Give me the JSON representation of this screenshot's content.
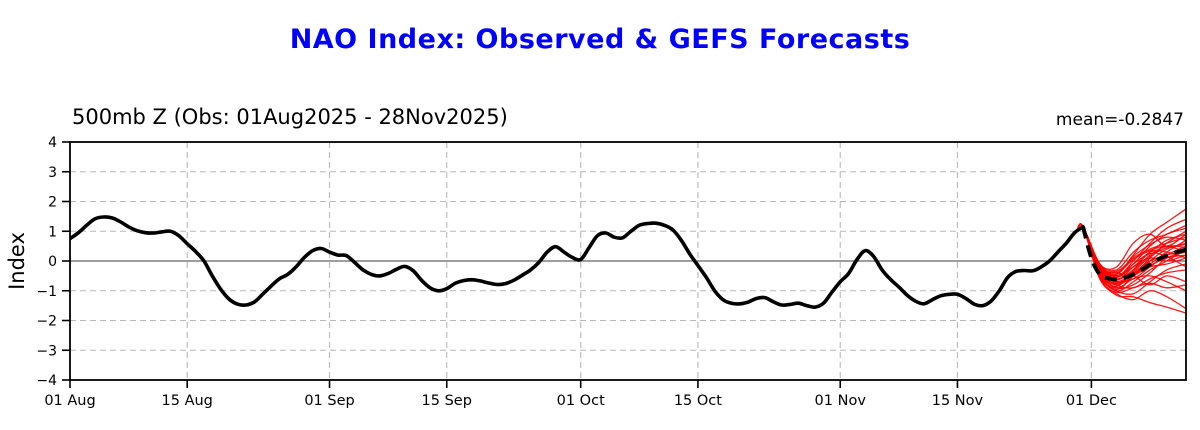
{
  "chart_data": {
    "type": "line",
    "title": "NAO Index: Observed & GEFS Forecasts",
    "panel_title": "500mb Z (Obs: 01Aug2025 - 28Nov2025)",
    "mean_label": "mean=-0.2847",
    "ylabel": "Index",
    "ylim": [
      -4,
      4
    ],
    "x_domain_days": [
      0,
      133.3
    ],
    "grid": true,
    "x_ticks": [
      {
        "day": 0,
        "label": "01 Aug"
      },
      {
        "day": 14,
        "label": "15 Aug"
      },
      {
        "day": 31,
        "label": "01 Sep"
      },
      {
        "day": 45,
        "label": "15 Sep"
      },
      {
        "day": 61,
        "label": "01 Oct"
      },
      {
        "day": 75,
        "label": "15 Oct"
      },
      {
        "day": 92,
        "label": "01 Nov"
      },
      {
        "day": 106,
        "label": "15 Nov"
      },
      {
        "day": 122,
        "label": "01 Dec"
      }
    ],
    "y_ticks": [
      {
        "value": 4,
        "label": "4"
      },
      {
        "value": 3,
        "label": "3"
      },
      {
        "value": 2,
        "label": "2"
      },
      {
        "value": 1,
        "label": "1"
      },
      {
        "value": 0,
        "label": "0"
      },
      {
        "value": -1,
        "label": "−1"
      },
      {
        "value": -2,
        "label": "−2"
      },
      {
        "value": -3,
        "label": "−3"
      },
      {
        "value": -4,
        "label": "−4"
      }
    ],
    "observed": {
      "start_day": 0,
      "step_days": 1,
      "values": [
        0.75,
        0.95,
        1.2,
        1.42,
        1.48,
        1.45,
        1.32,
        1.15,
        1.02,
        0.95,
        0.94,
        0.98,
        1.0,
        0.85,
        0.58,
        0.32,
        0.0,
        -0.5,
        -0.95,
        -1.28,
        -1.45,
        -1.48,
        -1.38,
        -1.12,
        -0.85,
        -0.6,
        -0.45,
        -0.2,
        0.12,
        0.35,
        0.42,
        0.3,
        0.2,
        0.18,
        -0.05,
        -0.3,
        -0.45,
        -0.5,
        -0.42,
        -0.28,
        -0.18,
        -0.33,
        -0.65,
        -0.9,
        -1.0,
        -0.93,
        -0.75,
        -0.66,
        -0.63,
        -0.67,
        -0.74,
        -0.79,
        -0.76,
        -0.65,
        -0.48,
        -0.3,
        -0.05,
        0.3,
        0.48,
        0.3,
        0.12,
        0.05,
        0.45,
        0.85,
        0.94,
        0.8,
        0.78,
        1.0,
        1.2,
        1.26,
        1.27,
        1.2,
        1.05,
        0.7,
        0.25,
        -0.15,
        -0.55,
        -1.0,
        -1.3,
        -1.42,
        -1.44,
        -1.38,
        -1.26,
        -1.23,
        -1.37,
        -1.48,
        -1.46,
        -1.42,
        -1.5,
        -1.55,
        -1.42,
        -1.05,
        -0.7,
        -0.42,
        0.05,
        0.35,
        0.15,
        -0.3,
        -0.62,
        -0.87,
        -1.15,
        -1.35,
        -1.44,
        -1.3,
        -1.17,
        -1.12,
        -1.12,
        -1.26,
        -1.45,
        -1.5,
        -1.35,
        -1.0,
        -0.55,
        -0.35,
        -0.32,
        -0.33,
        -0.2,
        0.0,
        0.3,
        0.6,
        0.95,
        1.15
      ]
    },
    "forecast_mean": {
      "days": [
        121,
        122,
        123,
        124,
        125,
        126,
        127,
        128,
        129,
        130,
        131,
        132,
        133.3
      ],
      "values": [
        1.15,
        0.1,
        -0.45,
        -0.58,
        -0.62,
        -0.56,
        -0.45,
        -0.3,
        -0.12,
        0.06,
        0.18,
        0.28,
        0.38
      ]
    },
    "ensemble": {
      "onset": [
        [
          119.3,
          0.65
        ],
        [
          120.2,
          1.0
        ]
      ],
      "knot_days": [
        121,
        123,
        125,
        127,
        129,
        131,
        133.3
      ],
      "members": [
        [
          1.15,
          -0.2,
          -0.55,
          -0.1,
          0.5,
          0.9,
          1.1
        ],
        [
          1.15,
          -0.35,
          -0.75,
          -0.5,
          0.0,
          0.4,
          0.6
        ],
        [
          1.15,
          -0.1,
          -0.45,
          0.2,
          0.9,
          1.3,
          1.75
        ],
        [
          1.15,
          -0.4,
          -0.9,
          -0.8,
          -0.4,
          0.1,
          0.3
        ],
        [
          1.15,
          -0.25,
          -0.6,
          -0.3,
          0.2,
          0.5,
          0.45
        ],
        [
          1.15,
          -0.5,
          -1.0,
          -1.1,
          -0.7,
          -0.3,
          -0.1
        ],
        [
          1.15,
          -0.15,
          -0.35,
          0.1,
          0.4,
          0.6,
          0.8
        ],
        [
          1.15,
          -0.3,
          -0.7,
          -0.6,
          -0.2,
          0.2,
          0.5
        ],
        [
          1.15,
          -0.45,
          -0.95,
          -0.5,
          0.1,
          0.6,
          1.0
        ],
        [
          1.15,
          -0.2,
          -0.5,
          -0.4,
          -0.1,
          0.3,
          0.7
        ],
        [
          1.15,
          -0.35,
          -0.8,
          -0.9,
          -0.6,
          -0.4,
          -0.3
        ],
        [
          1.15,
          -0.1,
          -0.3,
          0.3,
          0.7,
          0.9,
          1.2
        ],
        [
          1.15,
          -0.4,
          -0.85,
          -0.3,
          0.3,
          0.3,
          0.1
        ],
        [
          1.15,
          -0.55,
          -1.1,
          -1.3,
          -1.0,
          -1.2,
          -1.6
        ],
        [
          1.15,
          -0.25,
          -0.65,
          -0.2,
          0.1,
          0.0,
          0.2
        ],
        [
          1.15,
          -0.3,
          -0.55,
          0.0,
          0.6,
          1.1,
          1.4
        ],
        [
          1.15,
          -0.2,
          -0.4,
          -0.5,
          -0.8,
          -0.5,
          -0.7
        ],
        [
          1.15,
          -0.45,
          -1.0,
          -0.7,
          -0.3,
          0.0,
          0.4
        ],
        [
          1.15,
          -0.15,
          -0.5,
          -0.1,
          0.3,
          0.7,
          0.9
        ],
        [
          1.15,
          -0.35,
          -0.75,
          -0.4,
          0.0,
          0.2,
          0.35
        ],
        [
          1.15,
          -0.5,
          -0.9,
          -0.6,
          -0.5,
          -0.7,
          -1.0
        ],
        [
          1.15,
          -0.25,
          -0.45,
          0.15,
          0.55,
          0.8,
          0.7
        ],
        [
          1.15,
          -0.4,
          -0.8,
          -0.5,
          -0.2,
          -0.1,
          0.1
        ],
        [
          1.15,
          -0.2,
          -0.6,
          -0.35,
          0.15,
          0.45,
          0.55
        ],
        [
          1.15,
          -0.3,
          -0.5,
          -0.2,
          0.25,
          0.15,
          -0.2
        ],
        [
          1.15,
          -0.6,
          -1.05,
          -0.9,
          -0.75,
          -0.9,
          -0.8
        ],
        [
          1.15,
          -0.15,
          -0.4,
          0.05,
          0.35,
          0.5,
          0.3
        ],
        [
          1.15,
          -0.45,
          -0.7,
          -0.45,
          -0.15,
          0.1,
          0.2
        ],
        [
          1.15,
          -0.1,
          -0.2,
          0.6,
          0.9,
          0.5,
          0.9
        ],
        [
          1.15,
          -0.55,
          -1.15,
          -1.2,
          -1.4,
          -1.55,
          -1.75
        ]
      ]
    },
    "colors": {
      "title": "#0000ff",
      "observed_line": "#000000",
      "ensemble_line": "#ff0000",
      "forecast_mean_line": "#000000",
      "grid": "#b8b8b8",
      "zero_line": "#3c3c3c",
      "axis_border": "#000000",
      "background": "#ffffff"
    },
    "legend": "none"
  }
}
